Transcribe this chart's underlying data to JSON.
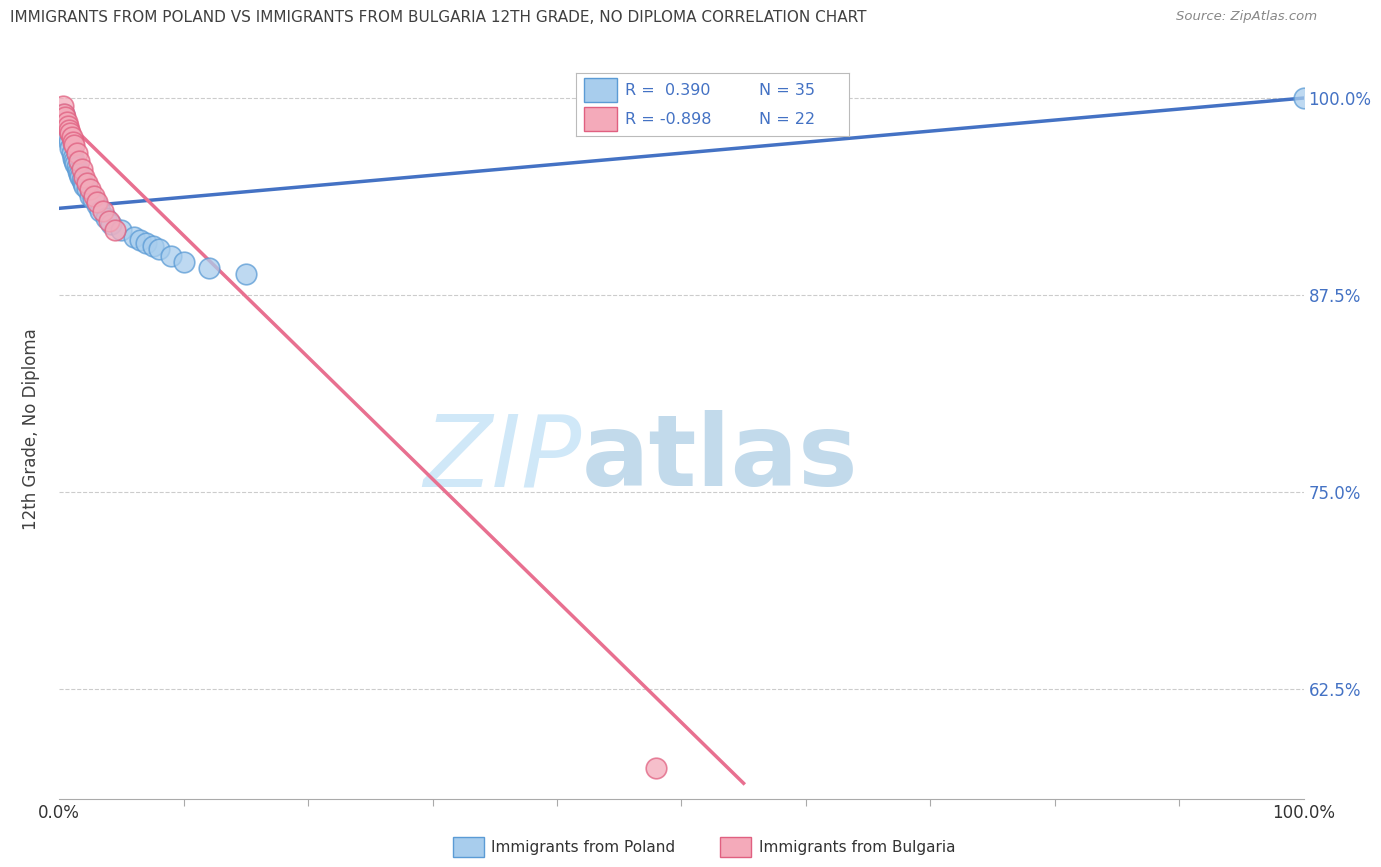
{
  "title": "IMMIGRANTS FROM POLAND VS IMMIGRANTS FROM BULGARIA 12TH GRADE, NO DIPLOMA CORRELATION CHART",
  "source": "Source: ZipAtlas.com",
  "ylabel": "12th Grade, No Diploma",
  "xlim": [
    0.0,
    1.0
  ],
  "ylim": [
    0.555,
    1.025
  ],
  "xtick_labels": [
    "0.0%",
    "100.0%"
  ],
  "ytick_positions": [
    0.625,
    0.75,
    0.875,
    1.0
  ],
  "right_ytick_labels": [
    "62.5%",
    "75.0%",
    "87.5%",
    "100.0%"
  ],
  "legend_r1": "R =  0.390",
  "legend_n1": "N = 35",
  "legend_r2": "R = -0.898",
  "legend_n2": "N = 22",
  "color_poland_fill": "#A8CDED",
  "color_poland_edge": "#5B9BD5",
  "color_bulgaria_fill": "#F4AABA",
  "color_bulgaria_edge": "#E06080",
  "color_poland_line": "#4472C4",
  "color_bulgaria_line": "#E87090",
  "color_title": "#404040",
  "color_source": "#888888",
  "color_axis_right": "#4472C4",
  "color_legend_text": "#4472C4",
  "color_grid": "#CCCCCC",
  "poland_x": [
    0.004,
    0.005,
    0.006,
    0.007,
    0.008,
    0.009,
    0.01,
    0.011,
    0.012,
    0.013,
    0.014,
    0.015,
    0.016,
    0.017,
    0.018,
    0.019,
    0.02,
    0.022,
    0.025,
    0.027,
    0.03,
    0.033,
    0.038,
    0.042,
    0.05,
    0.06,
    0.065,
    0.07,
    0.075,
    0.08,
    0.09,
    0.1,
    0.12,
    0.15,
    1.0
  ],
  "poland_y": [
    0.99,
    0.985,
    0.98,
    0.975,
    0.972,
    0.968,
    0.965,
    0.962,
    0.96,
    0.958,
    0.956,
    0.954,
    0.952,
    0.95,
    0.948,
    0.946,
    0.944,
    0.942,
    0.938,
    0.936,
    0.932,
    0.928,
    0.924,
    0.92,
    0.916,
    0.912,
    0.91,
    0.908,
    0.906,
    0.904,
    0.9,
    0.896,
    0.892,
    0.888,
    1.0
  ],
  "bulgaria_x": [
    0.003,
    0.004,
    0.005,
    0.006,
    0.007,
    0.008,
    0.009,
    0.01,
    0.011,
    0.012,
    0.014,
    0.016,
    0.018,
    0.02,
    0.022,
    0.025,
    0.028,
    0.03,
    0.035,
    0.04,
    0.045,
    0.48
  ],
  "bulgaria_y": [
    0.995,
    0.99,
    0.988,
    0.985,
    0.982,
    0.98,
    0.978,
    0.975,
    0.972,
    0.97,
    0.965,
    0.96,
    0.955,
    0.95,
    0.946,
    0.942,
    0.938,
    0.934,
    0.928,
    0.922,
    0.916,
    0.575
  ],
  "poland_trendline_x": [
    0.0,
    1.0
  ],
  "poland_trendline_y": [
    0.93,
    1.0
  ],
  "bulgaria_trendline_x": [
    0.0,
    0.55
  ],
  "bulgaria_trendline_y": [
    0.99,
    0.565
  ],
  "watermark_zip": "ZIP",
  "watermark_atlas": "atlas",
  "watermark_color": "#D0E8F8",
  "bottom_legend_labels": [
    "Immigrants from Poland",
    "Immigrants from Bulgaria"
  ]
}
